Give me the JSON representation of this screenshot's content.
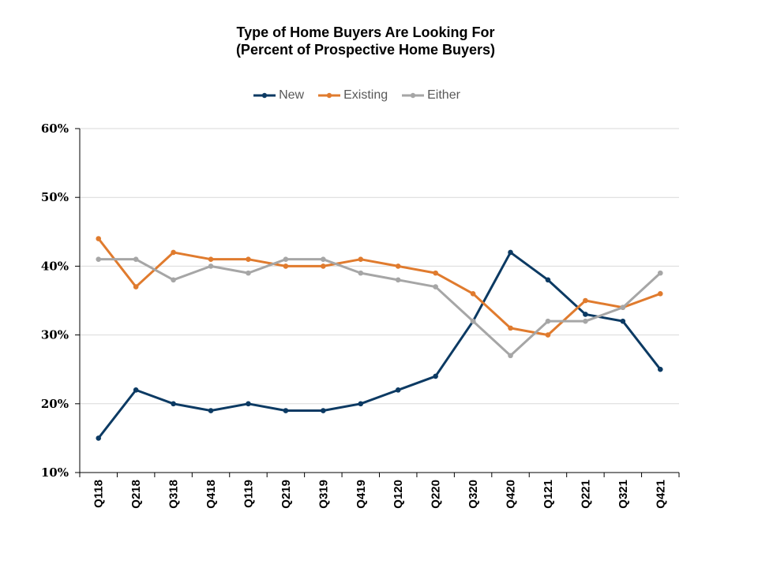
{
  "chart_data": {
    "type": "line",
    "title": "Type of Home Buyers Are Looking For",
    "subtitle": "(Percent of Prospective Home Buyers)",
    "categories": [
      "Q118",
      "Q218",
      "Q318",
      "Q418",
      "Q119",
      "Q219",
      "Q319",
      "Q419",
      "Q120",
      "Q220",
      "Q320",
      "Q420",
      "Q121",
      "Q221",
      "Q321",
      "Q421"
    ],
    "series": [
      {
        "name": "New",
        "color": "#0c3a63",
        "values": [
          15,
          22,
          20,
          19,
          20,
          19,
          19,
          20,
          22,
          24,
          32,
          42,
          38,
          33,
          32,
          25
        ]
      },
      {
        "name": "Existing",
        "color": "#e07b2e",
        "values": [
          44,
          37,
          42,
          41,
          41,
          40,
          40,
          41,
          40,
          39,
          36,
          31,
          30,
          35,
          34,
          36
        ]
      },
      {
        "name": "Either",
        "color": "#a6a6a6",
        "values": [
          41,
          41,
          38,
          40,
          39,
          41,
          41,
          39,
          38,
          37,
          32,
          27,
          32,
          32,
          34,
          39
        ]
      }
    ],
    "ylim": [
      10,
      60
    ],
    "yticks": [
      "10%",
      "20%",
      "30%",
      "40%",
      "50%",
      "60%"
    ],
    "ytick_values": [
      10,
      20,
      30,
      40,
      50,
      60
    ],
    "grid": true,
    "legend_position": "top-center"
  }
}
